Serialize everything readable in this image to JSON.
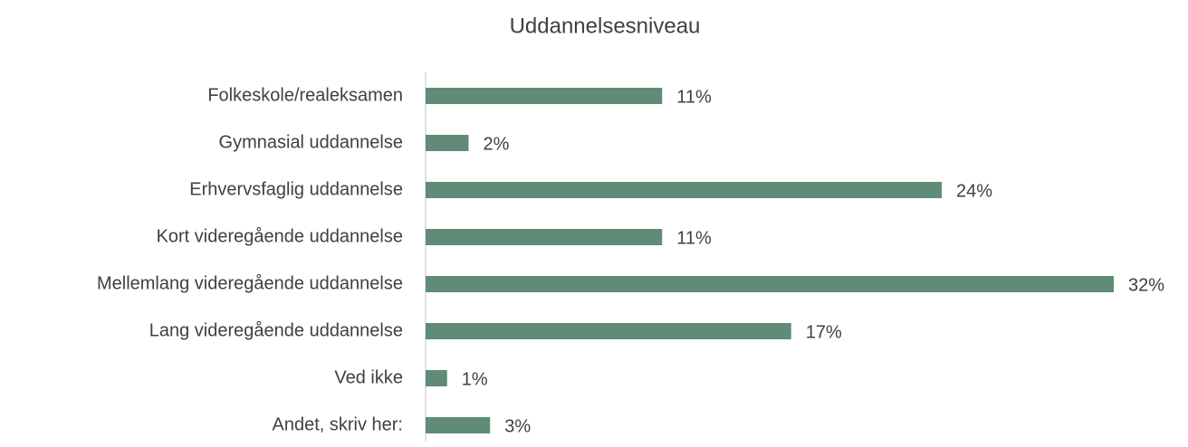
{
  "chart_data": {
    "type": "bar",
    "orientation": "horizontal",
    "title": "Uddannelsesniveau",
    "categories": [
      "Folkeskole/realeksamen",
      "Gymnasial uddannelse",
      "Erhvervsfaglig uddannelse",
      "Kort videregående uddannelse",
      "Mellemlang videregående uddannelse",
      "Lang videregående uddannelse",
      "Ved ikke",
      "Andet, skriv her:"
    ],
    "values": [
      11,
      2,
      24,
      11,
      32,
      17,
      1,
      3
    ],
    "value_labels": [
      "11%",
      "2%",
      "24%",
      "11%",
      "32%",
      "17%",
      "1%",
      "3%"
    ],
    "color": "#5f8b77"
  }
}
